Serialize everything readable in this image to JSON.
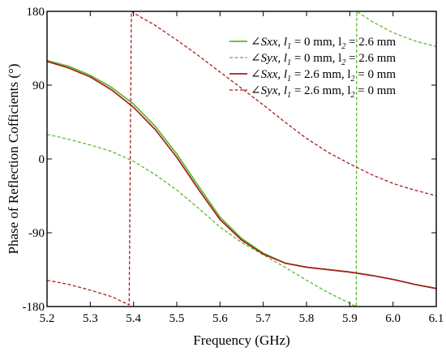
{
  "chart_data": {
    "type": "line",
    "xlabel": "Frequency (GHz)",
    "ylabel": "Phase of Reflection Cofficients (°)",
    "xlim": [
      5.2,
      6.1
    ],
    "ylim": [
      -180,
      180
    ],
    "xticks": [
      "5.2",
      "5.3",
      "5.4",
      "5.5",
      "5.6",
      "5.7",
      "5.8",
      "5.9",
      "6.0",
      "6.1"
    ],
    "yticks": [
      "180",
      "90",
      "0",
      "-90",
      "-180"
    ],
    "legend_position": "top-right",
    "series": [
      {
        "name": "∠Sxx, l1 = 0 mm, l2 = 2.6 mm",
        "legend": {
          "symbol": "∠",
          "param": "Sxx",
          "a": ", l",
          "a_sub": "1",
          "b": " = 0 mm, l",
          "b_sub": "2",
          "c": " = 2.6 mm"
        },
        "color": "#5cb82e",
        "dash": "solid",
        "x": [
          5.2,
          5.25,
          5.3,
          5.35,
          5.4,
          5.45,
          5.5,
          5.55,
          5.6,
          5.65,
          5.7,
          5.75,
          5.8,
          5.85,
          5.9,
          5.95,
          6.0,
          6.05,
          6.1
        ],
        "y": [
          120,
          113,
          102,
          87,
          67,
          40,
          6,
          -33,
          -71,
          -97,
          -115,
          -127,
          -132,
          -135,
          -138,
          -142,
          -147,
          -153,
          -158
        ]
      },
      {
        "name": "∠Syx, l1 = 0 mm, l2 = 2.6 mm",
        "legend": {
          "symbol": "∠",
          "param": "Syx",
          "a": ", l",
          "a_sub": "1",
          "b": " = 0 mm, l",
          "b_sub": "2",
          "c": " = 2.6 mm"
        },
        "color": "#5cb82e",
        "dash": "dashed",
        "x": [
          5.2,
          5.25,
          5.3,
          5.35,
          5.4,
          5.45,
          5.5,
          5.55,
          5.6,
          5.65,
          5.7,
          5.75,
          5.8,
          5.85,
          5.9,
          5.915,
          5.916,
          5.95,
          6.0,
          6.05,
          6.1
        ],
        "y": [
          30,
          24,
          17,
          9,
          -3,
          -19,
          -38,
          -60,
          -83,
          -102,
          -117,
          -132,
          -148,
          -163,
          -176,
          -180,
          180,
          168,
          154,
          144,
          137
        ]
      },
      {
        "name": "∠Sxx, l1 = 2.6 mm, l2 = 0 mm",
        "legend": {
          "symbol": "∠",
          "param": "Sxx",
          "a": ", l",
          "a_sub": "1",
          "b": " = 2.6 mm, l",
          "b_sub": "2",
          "c": " = 0 mm"
        },
        "color": "#a61e1e",
        "dash": "solid",
        "x": [
          5.2,
          5.25,
          5.3,
          5.35,
          5.4,
          5.45,
          5.5,
          5.55,
          5.6,
          5.65,
          5.7,
          5.75,
          5.8,
          5.85,
          5.9,
          5.95,
          6.0,
          6.05,
          6.1
        ],
        "y": [
          119,
          111,
          100,
          84,
          63,
          36,
          2,
          -37,
          -74,
          -99,
          -116,
          -127,
          -132,
          -135,
          -138,
          -142,
          -147,
          -153,
          -158
        ]
      },
      {
        "name": "∠Syx, l1 = 2.6 mm, l2 = 0 mm",
        "legend": {
          "symbol": "∠",
          "param": "Syx",
          "a": ", l",
          "a_sub": "1",
          "b": " = 2.6 mm, l",
          "b_sub": "2",
          "c": " = 0 mm"
        },
        "color": "#a61e1e",
        "dash": "dashed",
        "x": [
          5.2,
          5.25,
          5.3,
          5.35,
          5.39,
          5.395,
          5.4,
          5.45,
          5.5,
          5.55,
          5.6,
          5.65,
          5.7,
          5.75,
          5.8,
          5.85,
          5.9,
          5.95,
          6.0,
          6.05,
          6.1
        ],
        "y": [
          -148,
          -153,
          -160,
          -168,
          -178,
          180,
          178,
          163,
          145,
          126,
          106,
          86,
          66,
          45,
          25,
          8,
          -6,
          -19,
          -30,
          -38,
          -45
        ]
      }
    ]
  }
}
